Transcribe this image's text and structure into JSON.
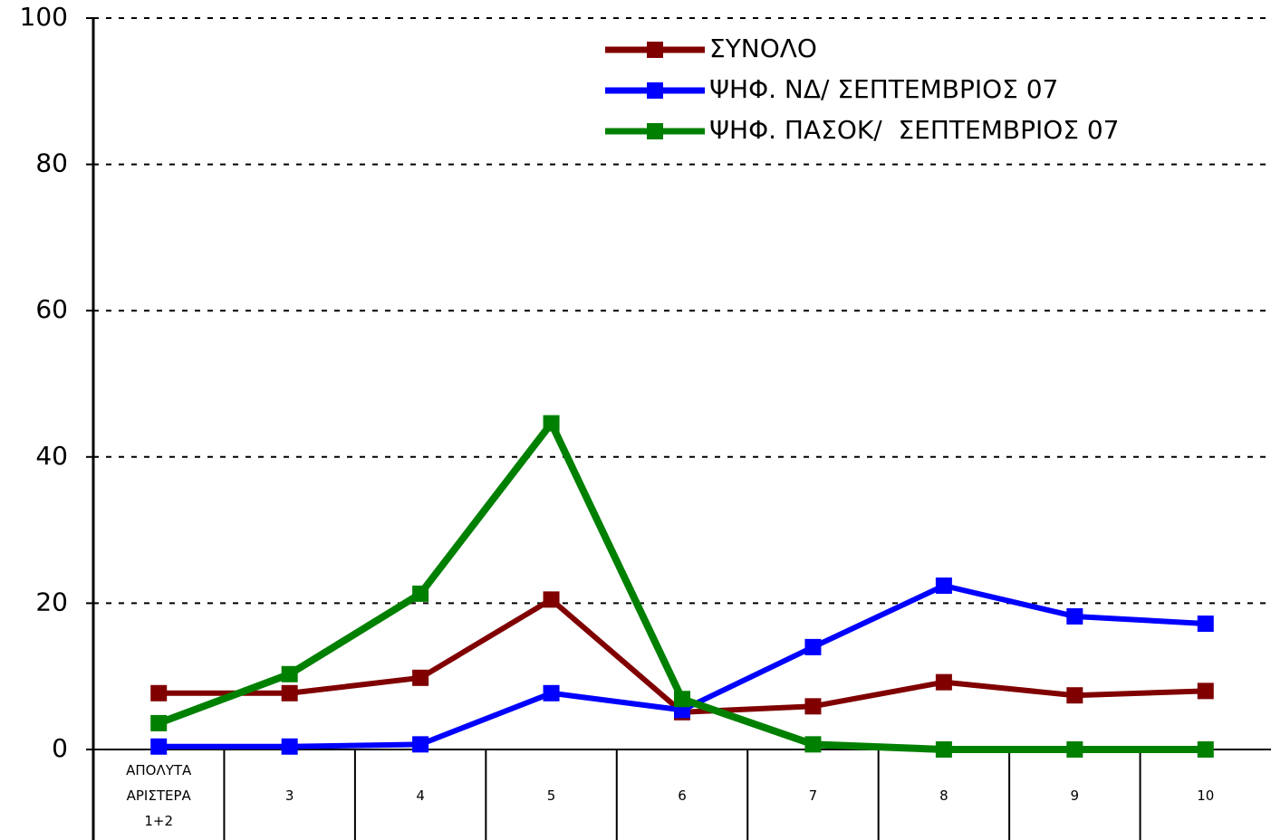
{
  "chart_data": {
    "type": "line",
    "categories": [
      "ΑΠΟΛΥΤΑ ΑΡΙΣΤΕΡΑ 1+2",
      "3",
      "4",
      "5",
      "6",
      "7",
      "8",
      "9",
      "10"
    ],
    "series": [
      {
        "name": "ΣΥΝΟΛΟ",
        "color": "#800000",
        "values": [
          7.7,
          7.7,
          9.8,
          20.5,
          5.1,
          5.9,
          9.2,
          7.4,
          8.0
        ]
      },
      {
        "name": "ΨΗΦ. ΝΔ/ ΣΕΠΤΕΜΒΡΙΟΣ 07",
        "color": "#0000ff",
        "values": [
          0.4,
          0.4,
          0.7,
          7.7,
          5.4,
          14.0,
          22.4,
          18.2,
          17.2
        ]
      },
      {
        "name": "ΨΗΦ. ΠΑΣΟΚ/  ΣΕΠΤΕΜΒΡΙΟΣ 07",
        "color": "#008000",
        "values": [
          3.6,
          10.3,
          21.3,
          44.6,
          6.9,
          0.7,
          0,
          0,
          0
        ]
      }
    ],
    "ylim": [
      0,
      100
    ],
    "yticks": [
      0,
      20,
      40,
      60,
      80,
      100
    ],
    "grid": true,
    "legend": "top-right"
  }
}
